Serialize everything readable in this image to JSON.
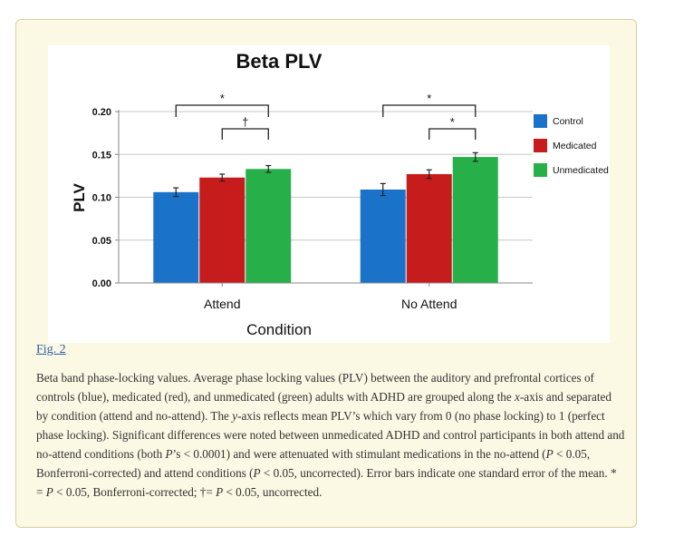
{
  "chart_data": {
    "type": "bar",
    "title": "Beta PLV",
    "xlabel": "Condition",
    "ylabel": "PLV",
    "ylim": [
      0,
      0.2
    ],
    "yticks": [
      "0.00",
      "0.05",
      "0.10",
      "0.15",
      "0.20"
    ],
    "grid": true,
    "legend_position": "top-right",
    "categories": [
      "Attend",
      "No Attend"
    ],
    "series": [
      {
        "name": "Control",
        "color": "#1b73c9",
        "values": [
          0.106,
          0.109
        ],
        "errors": [
          0.005,
          0.007
        ]
      },
      {
        "name": "Medicated",
        "color": "#c61c1c",
        "values": [
          0.123,
          0.127
        ],
        "errors": [
          0.004,
          0.005
        ]
      },
      {
        "name": "Unmedicated",
        "color": "#27b04a",
        "values": [
          0.133,
          0.147
        ],
        "errors": [
          0.004,
          0.005
        ]
      }
    ],
    "significance": [
      {
        "category": 0,
        "from_series": 0,
        "to_series": 2,
        "symbol": "*"
      },
      {
        "category": 0,
        "from_series": 1,
        "to_series": 2,
        "symbol": "†"
      },
      {
        "category": 1,
        "from_series": 0,
        "to_series": 2,
        "symbol": "*"
      },
      {
        "category": 1,
        "from_series": 1,
        "to_series": 2,
        "symbol": "*"
      }
    ]
  },
  "figure_link": "Fig. 2",
  "caption": {
    "p1": "Beta band phase-locking values. Average phase locking values (PLV) between the auditory and prefrontal cortices of controls (blue), medicated (red), and unmedicated (green) adults with ADHD are grouped along the ",
    "x_axis": "x",
    "p2": "-axis and separated by condition (attend and no-attend). The ",
    "y_axis": "y",
    "p3": "-axis reflects mean PLV’s which vary from 0 (no phase locking) to 1 (perfect phase locking). Significant differences were noted between unmedicated ADHD and control participants in both attend and no-attend conditions (both ",
    "p_a": "P",
    "p4": "’s < 0.0001) and were attenuated with stimulant medications in the no-attend (",
    "p_b": "P",
    "p5": " < 0.05, Bonferroni-corrected) and attend conditions (",
    "p_c": "P",
    "p6": " < 0.05, uncorrected). Error bars indicate one standard error of the mean. * = ",
    "p_d": "P",
    "p7": " < 0.05, Bonferroni-corrected; †= ",
    "p_e": "P",
    "p8": " < 0.05, uncorrected."
  }
}
